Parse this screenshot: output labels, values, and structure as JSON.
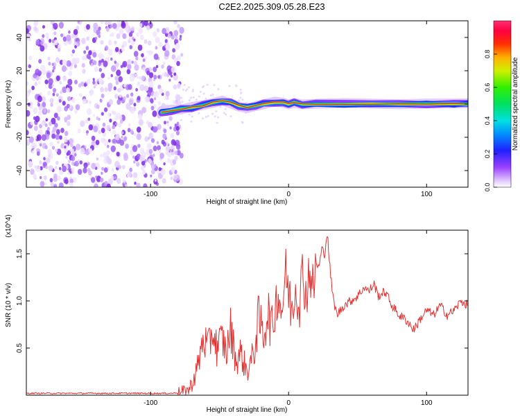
{
  "title": "C2E2.2025.309.05.28.E23",
  "chart_data": [
    {
      "type": "heatmap",
      "name": "spectrogram",
      "xlabel": "Height of straight line (km)",
      "ylabel": "Frequency (Hz)",
      "xlim": [
        -190,
        130
      ],
      "ylim": [
        -50,
        50
      ],
      "xticks": [
        -100,
        0,
        100
      ],
      "yticks": [
        -40,
        -20,
        0,
        20,
        40
      ],
      "colorbar": {
        "label": "Normalized spectral amplitude",
        "range": [
          0,
          1
        ],
        "ticks": [
          "0.0",
          "0.2",
          "0.4",
          "0.6",
          "0.8"
        ]
      },
      "noise_region_km": [
        -190,
        -80
      ],
      "ridge": {
        "description": "dominant frequency near 0 Hz",
        "x": [
          -92,
          -85,
          -78,
          -70,
          -62,
          -55,
          -48,
          -42,
          -36,
          -30,
          -24,
          -18,
          -10,
          -4,
          0,
          4,
          10,
          20,
          40,
          60,
          80,
          100,
          120,
          130
        ],
        "y": [
          -5,
          -4,
          -3,
          -2,
          -1,
          1,
          2,
          1,
          -1,
          -2,
          -1,
          0,
          1,
          1,
          0,
          1,
          0,
          0,
          0,
          0,
          0,
          0,
          0,
          0
        ]
      }
    },
    {
      "type": "line",
      "name": "snr",
      "xlabel": "Height of straight line (km)",
      "ylabel": "SNR (10 * v/v)",
      "y_multiplier": "(x10^4)",
      "xlim": [
        -190,
        130
      ],
      "ylim": [
        0,
        1.75
      ],
      "xticks": [
        -100,
        0,
        100
      ],
      "yticks": [
        0.5,
        1.0,
        1.5
      ],
      "color": "#e03030",
      "series": [
        {
          "name": "SNR",
          "x": [
            -190,
            -170,
            -150,
            -130,
            -110,
            -95,
            -85,
            -78,
            -72,
            -68,
            -65,
            -62,
            -58,
            -55,
            -52,
            -48,
            -45,
            -42,
            -38,
            -35,
            -30,
            -25,
            -22,
            -18,
            -15,
            -12,
            -8,
            -5,
            -2,
            2,
            5,
            8,
            10,
            13,
            15,
            18,
            20,
            22,
            24,
            26,
            28,
            30,
            32,
            35,
            40,
            45,
            50,
            55,
            58,
            62,
            65,
            70,
            75,
            80,
            85,
            88,
            90,
            92,
            95,
            100,
            105,
            110,
            115,
            120,
            125,
            130
          ],
          "y": [
            0.02,
            0.02,
            0.02,
            0.02,
            0.02,
            0.02,
            0.02,
            0.03,
            0.06,
            0.2,
            0.35,
            0.6,
            0.5,
            0.7,
            0.5,
            0.6,
            0.45,
            0.7,
            0.35,
            0.45,
            0.25,
            0.45,
            0.8,
            0.65,
            0.9,
            0.7,
            1.1,
            0.9,
            1.3,
            0.9,
            1.15,
            1.0,
            1.3,
            1.05,
            1.35,
            1.1,
            1.4,
            1.35,
            1.55,
            1.5,
            1.72,
            1.35,
            1.05,
            0.85,
            0.95,
            1.0,
            1.05,
            1.15,
            1.1,
            1.18,
            1.05,
            1.1,
            0.95,
            0.85,
            0.8,
            0.75,
            0.7,
            0.72,
            0.8,
            0.9,
            0.85,
            0.95,
            0.85,
            0.9,
            1.0,
            0.95
          ]
        }
      ]
    }
  ]
}
